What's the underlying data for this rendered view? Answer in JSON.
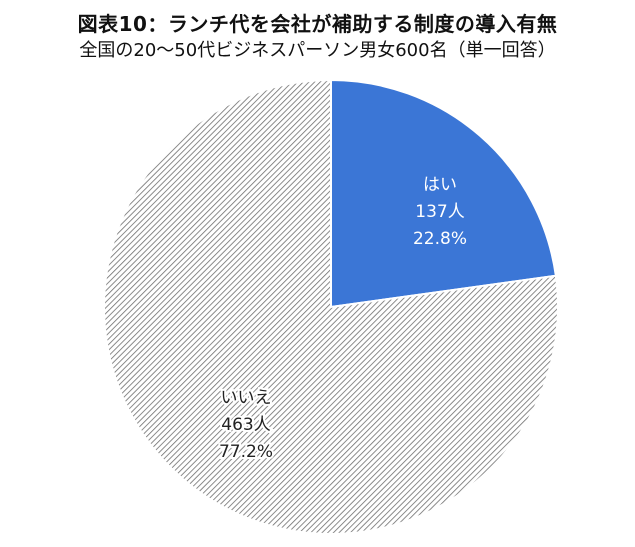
{
  "title": "図表10：ランチ代を会社が補助する制度の導入有無",
  "subtitle": "全国の20～50代ビジネスパーソン男女600名（単一回答）",
  "chart_data": {
    "type": "pie",
    "total": 600,
    "slices": [
      {
        "label": "はい",
        "count": 137,
        "count_label": "137人",
        "percent_label": "22.8%",
        "value": 22.8,
        "color": "#3b76d6"
      },
      {
        "label": "いいえ",
        "count": 463,
        "count_label": "463人",
        "percent_label": "77.2%",
        "value": 77.2,
        "color": "hatch-gray"
      }
    ]
  }
}
